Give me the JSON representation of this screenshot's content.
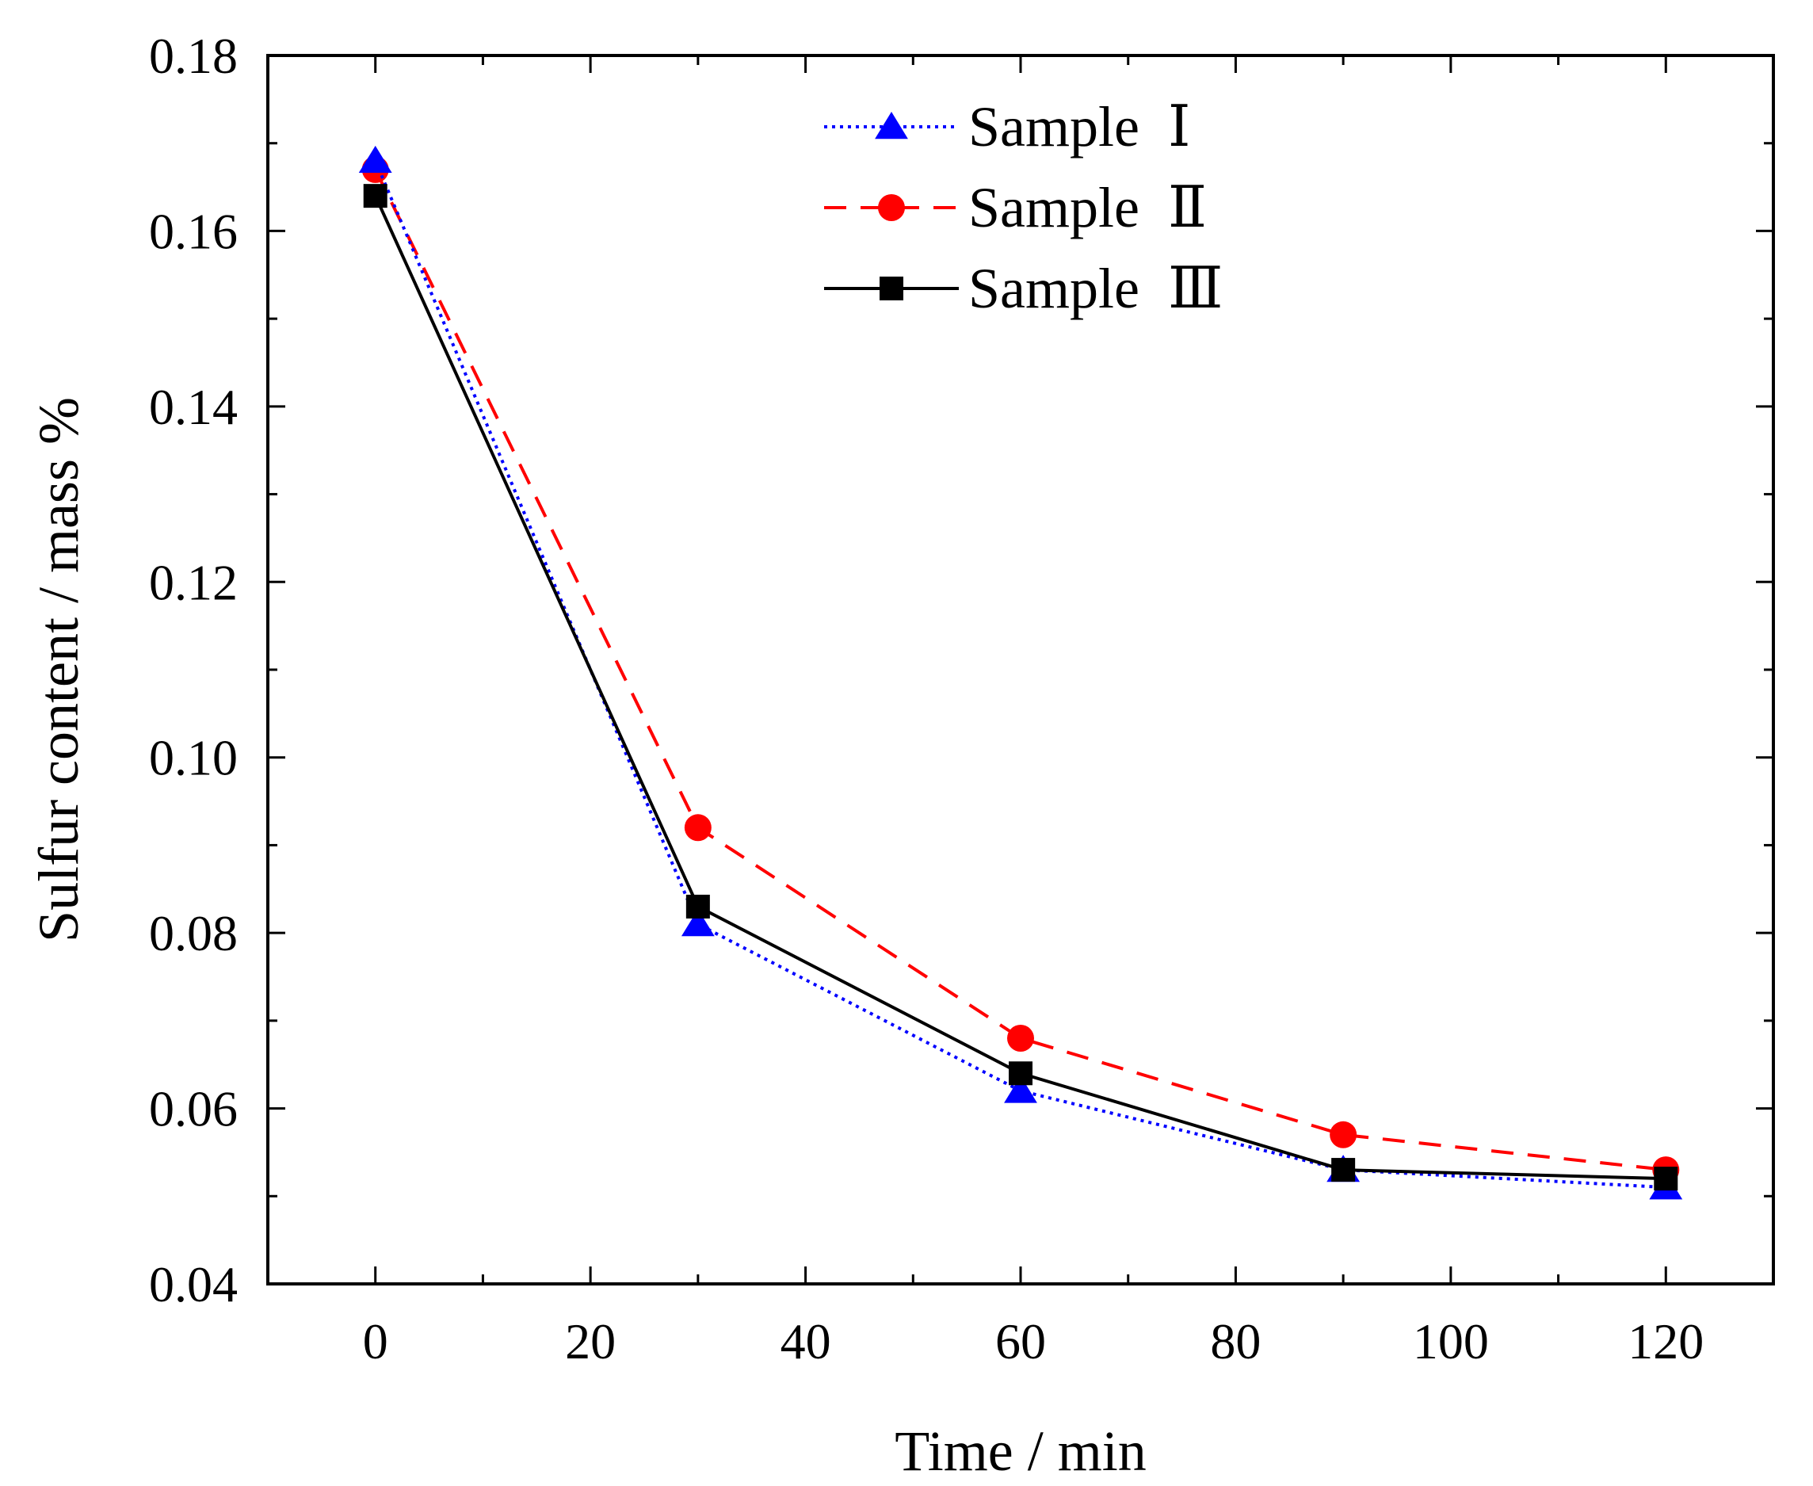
{
  "chart_data": {
    "type": "line",
    "title": "",
    "xlabel": "Time / min",
    "ylabel": "Sulfur content / mass %",
    "xlim": [
      -10,
      130
    ],
    "ylim": [
      0.04,
      0.18
    ],
    "x_ticks": [
      0,
      20,
      40,
      60,
      80,
      100,
      120
    ],
    "x_tick_labels": [
      "0",
      "20",
      "40",
      "60",
      "80",
      "100",
      "120"
    ],
    "y_ticks": [
      0.04,
      0.06,
      0.08,
      0.1,
      0.12,
      0.14,
      0.16,
      0.18
    ],
    "y_tick_labels": [
      "0.04",
      "0.06",
      "0.08",
      "0.10",
      "0.12",
      "0.14",
      "0.16",
      "0.18"
    ],
    "x_minor_step": 10,
    "y_minor_step": 0.01,
    "grid": false,
    "legend_position": "top-center",
    "x": [
      0,
      30,
      60,
      90,
      120
    ],
    "series": [
      {
        "name": "Sample  Ⅰ",
        "values": [
          0.168,
          0.081,
          0.062,
          0.053,
          0.051
        ],
        "color": "#0000ff",
        "line_style": "dotted",
        "marker": "triangle"
      },
      {
        "name": "Sample  Ⅱ",
        "values": [
          0.167,
          0.092,
          0.068,
          0.057,
          0.053
        ],
        "color": "#ff0000",
        "line_style": "dashed",
        "marker": "circle"
      },
      {
        "name": "Sample  Ⅲ",
        "values": [
          0.164,
          0.083,
          0.064,
          0.053,
          0.052
        ],
        "color": "#000000",
        "line_style": "solid",
        "marker": "square"
      }
    ]
  }
}
